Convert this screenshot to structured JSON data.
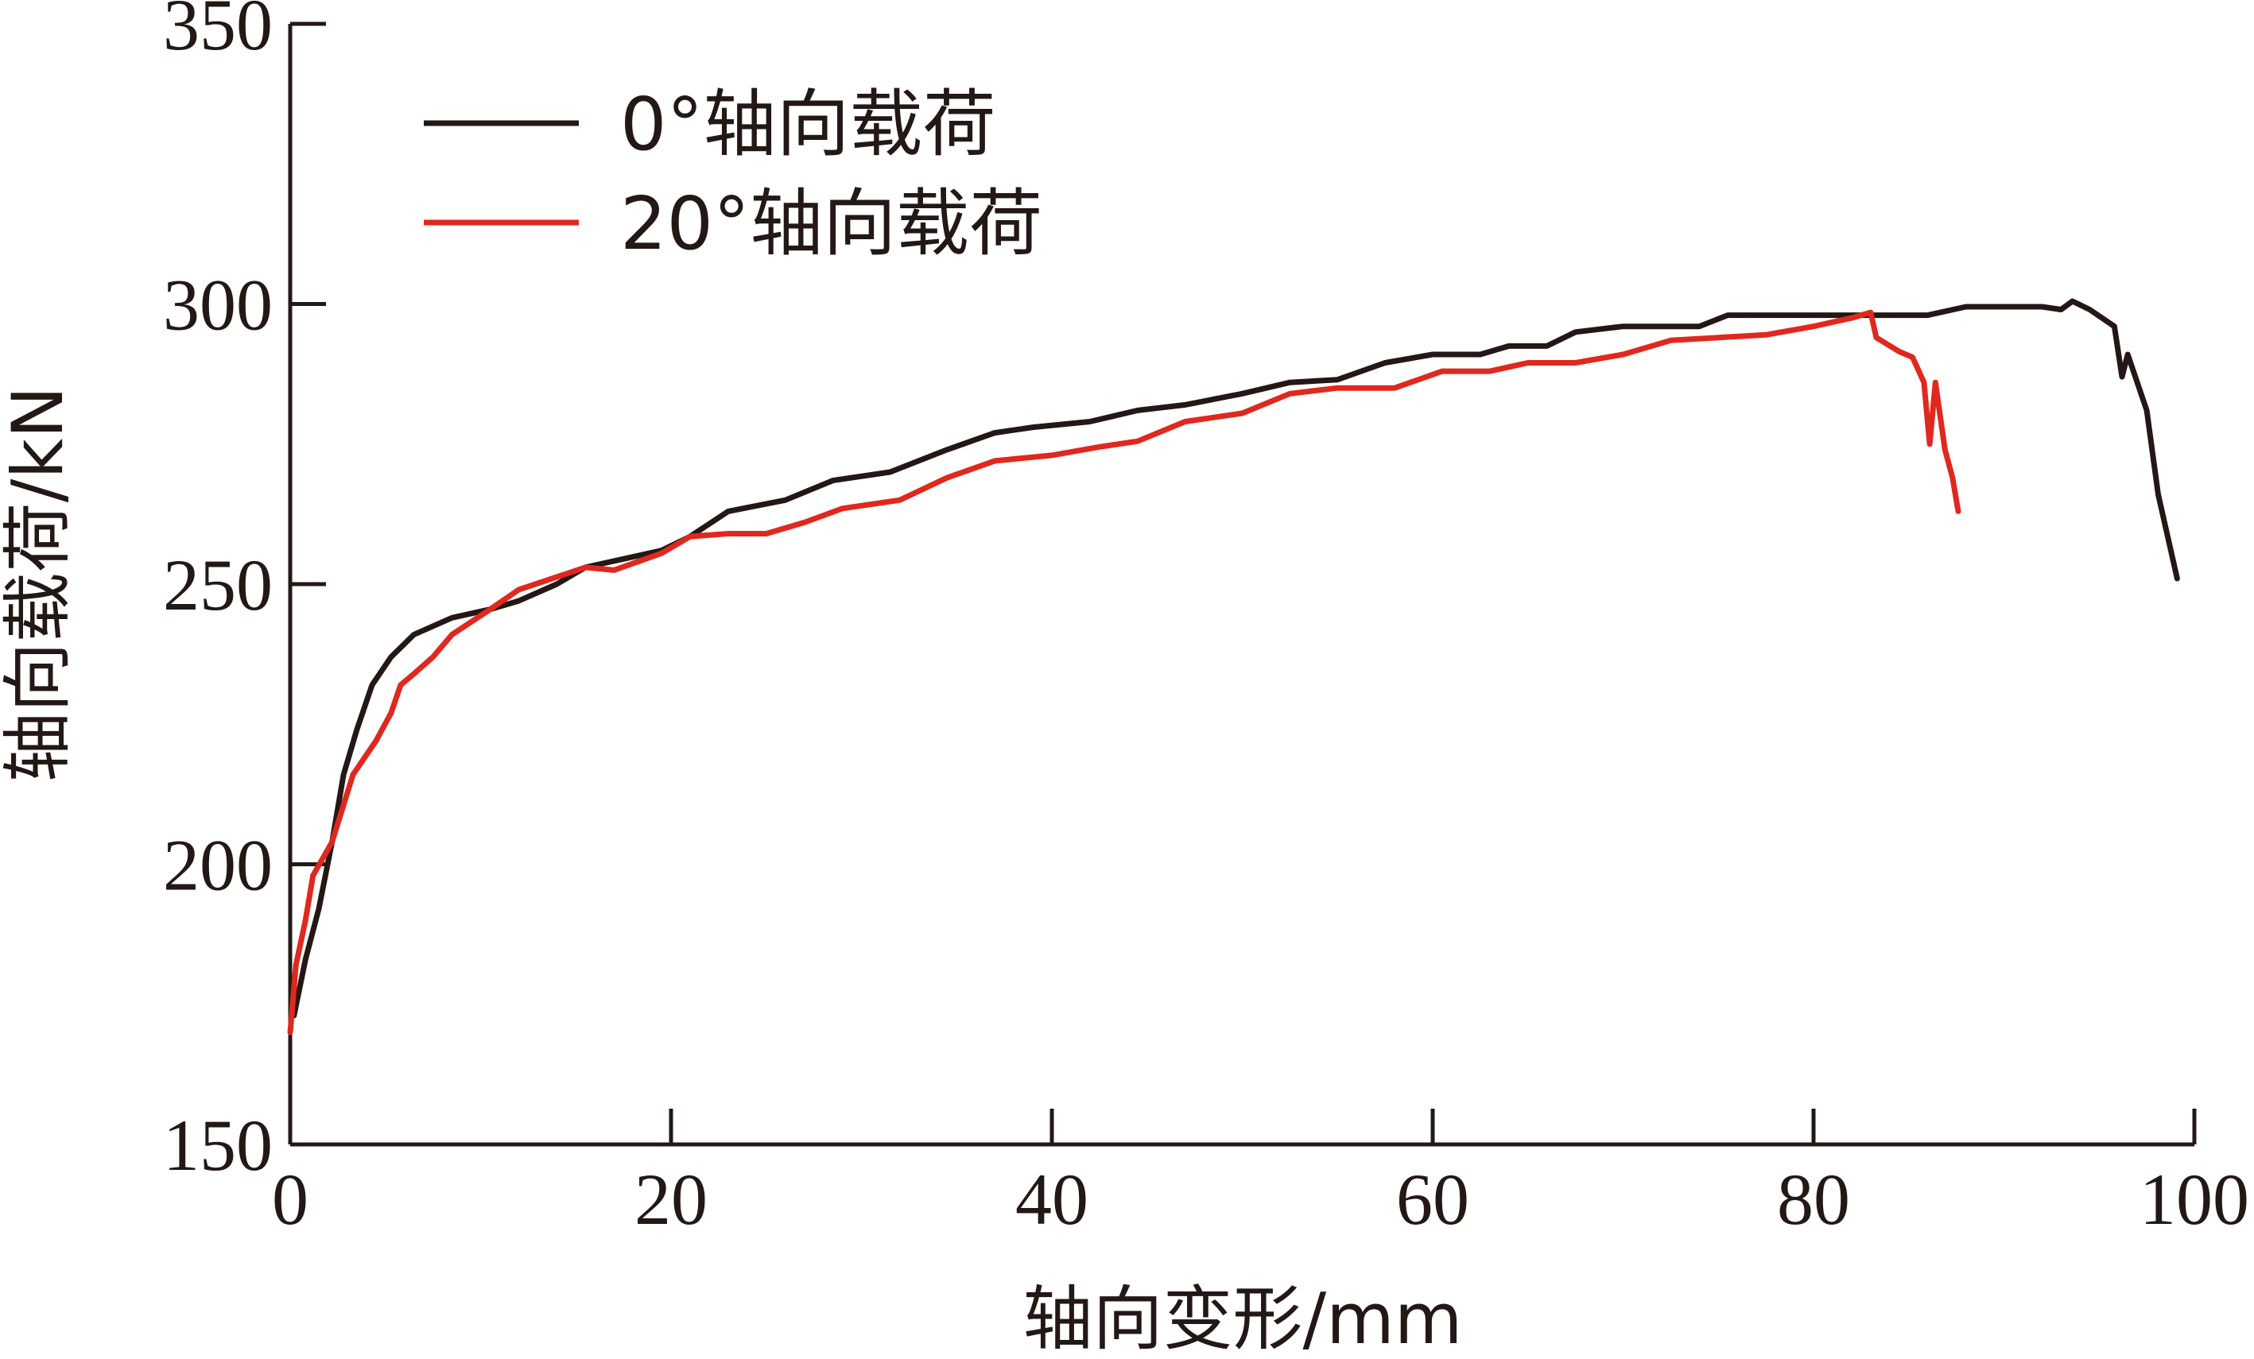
{
  "chart_data": {
    "type": "line",
    "xlabel": "轴向变形/mm",
    "ylabel": "轴向载荷/kN",
    "xlim": [
      0,
      100
    ],
    "ylim": [
      150,
      350
    ],
    "x_ticks": [
      0,
      20,
      40,
      60,
      80,
      100
    ],
    "y_ticks": [
      150,
      200,
      250,
      300,
      350
    ],
    "grid": false,
    "legend_position": "top-left",
    "series": [
      {
        "name": "0°轴向载荷",
        "color": "#231815",
        "points": [
          [
            0.2,
            173
          ],
          [
            0.8,
            183
          ],
          [
            1.5,
            192
          ],
          [
            2.2,
            204
          ],
          [
            2.8,
            216
          ],
          [
            3.5,
            224
          ],
          [
            4.3,
            232
          ],
          [
            5.3,
            237
          ],
          [
            6.5,
            241
          ],
          [
            8.5,
            244
          ],
          [
            10.5,
            245.5
          ],
          [
            12,
            247
          ],
          [
            14,
            250
          ],
          [
            15.5,
            253
          ],
          [
            17.5,
            254.5
          ],
          [
            19.5,
            256
          ],
          [
            21,
            258.5
          ],
          [
            23,
            263
          ],
          [
            26,
            265
          ],
          [
            28.5,
            268.5
          ],
          [
            31.5,
            270
          ],
          [
            34.5,
            274
          ],
          [
            37,
            277
          ],
          [
            39,
            278
          ],
          [
            42,
            279
          ],
          [
            44.5,
            281
          ],
          [
            47,
            282
          ],
          [
            50,
            284
          ],
          [
            52.5,
            286
          ],
          [
            55,
            286.5
          ],
          [
            57.5,
            289.5
          ],
          [
            60,
            291
          ],
          [
            62.5,
            291
          ],
          [
            64,
            292.5
          ],
          [
            66,
            292.5
          ],
          [
            67.5,
            295
          ],
          [
            70,
            296
          ],
          [
            72.5,
            296
          ],
          [
            74,
            296
          ],
          [
            75.5,
            298
          ],
          [
            79,
            298
          ],
          [
            81,
            298
          ],
          [
            83,
            298
          ],
          [
            86,
            298
          ],
          [
            88,
            299.5
          ],
          [
            92,
            299.5
          ],
          [
            93,
            299
          ],
          [
            93.6,
            300.5
          ],
          [
            94.5,
            299
          ],
          [
            95.8,
            296
          ],
          [
            96.2,
            287
          ],
          [
            96.5,
            291
          ],
          [
            97.5,
            281
          ],
          [
            98.1,
            266
          ],
          [
            99.1,
            251
          ]
        ]
      },
      {
        "name": "20°轴向载荷",
        "color": "#e0281e",
        "points": [
          [
            0,
            170
          ],
          [
            0.3,
            182
          ],
          [
            0.8,
            190
          ],
          [
            1.2,
            198
          ],
          [
            2.2,
            204
          ],
          [
            3.3,
            216
          ],
          [
            4.5,
            222
          ],
          [
            5.3,
            227
          ],
          [
            5.8,
            232
          ],
          [
            6.5,
            234
          ],
          [
            7.5,
            237
          ],
          [
            8.5,
            241
          ],
          [
            10.5,
            245.5
          ],
          [
            12,
            249
          ],
          [
            15.5,
            253
          ],
          [
            17,
            252.5
          ],
          [
            19.5,
            255.5
          ],
          [
            21,
            258.5
          ],
          [
            23,
            259
          ],
          [
            25,
            259
          ],
          [
            27,
            261
          ],
          [
            29,
            263.5
          ],
          [
            32,
            265
          ],
          [
            34.5,
            269
          ],
          [
            37,
            272
          ],
          [
            40,
            273
          ],
          [
            42.5,
            274.5
          ],
          [
            44.5,
            275.5
          ],
          [
            47,
            279
          ],
          [
            50,
            280.5
          ],
          [
            52.5,
            284
          ],
          [
            55,
            285
          ],
          [
            58,
            285
          ],
          [
            60.5,
            288
          ],
          [
            63,
            288
          ],
          [
            65,
            289.5
          ],
          [
            67.5,
            289.5
          ],
          [
            70,
            291
          ],
          [
            72.5,
            293.5
          ],
          [
            75,
            294
          ],
          [
            77.5,
            294.5
          ],
          [
            80,
            296
          ],
          [
            82,
            297.5
          ],
          [
            83,
            298.5
          ],
          [
            83.3,
            294
          ],
          [
            84.5,
            291.5
          ],
          [
            85.2,
            290.5
          ],
          [
            85.8,
            286
          ],
          [
            86.1,
            275
          ],
          [
            86.4,
            286
          ],
          [
            86.9,
            274
          ],
          [
            87.3,
            269
          ],
          [
            87.6,
            263
          ]
        ]
      }
    ]
  }
}
